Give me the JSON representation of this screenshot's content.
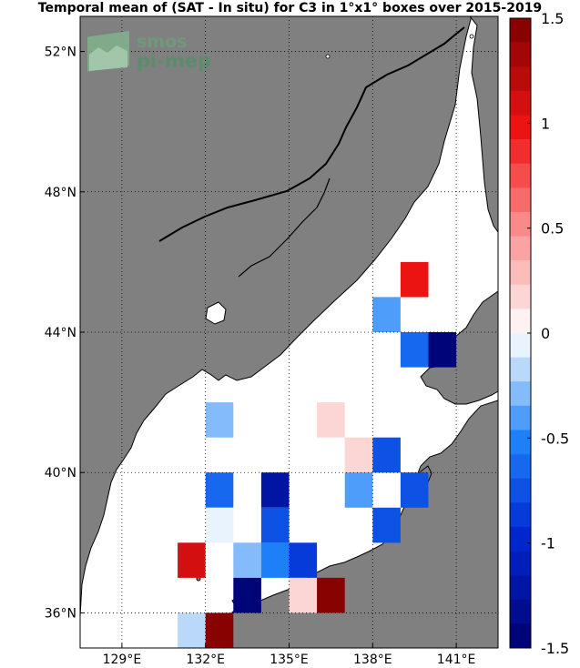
{
  "title": "Temporal mean of (SAT - In situ) for C3 in 1°x1° boxes over 2015-2019",
  "logo": {
    "line1": "smos",
    "line2": "pi-mep"
  },
  "map": {
    "lon_range": [
      127.5,
      142.5
    ],
    "lat_range": [
      35,
      53
    ],
    "land_color": "#808080",
    "sea_color": "#ffffff",
    "grid": true
  },
  "chart_data": {
    "type": "heatmap",
    "title": "Temporal mean of (SAT - In situ) for C3 in 1°x1° boxes over 2015-2019",
    "x_ticks": [
      "129°E",
      "132°E",
      "135°E",
      "138°E",
      "141°E"
    ],
    "y_ticks": [
      "36°N",
      "40°N",
      "44°N",
      "48°N",
      "52°N"
    ],
    "x_tick_values": [
      129,
      132,
      135,
      138,
      141
    ],
    "y_tick_values": [
      36,
      40,
      44,
      48,
      52
    ],
    "colorbar": {
      "min": -1.5,
      "max": 1.5,
      "tick_labels": [
        "1.5",
        "1",
        "0.5",
        "0",
        "-0.5",
        "-1",
        "-1.5"
      ],
      "tick_values": [
        1.5,
        1,
        0.5,
        0,
        -0.5,
        -1,
        -1.5
      ]
    },
    "cells": [
      {
        "lon": 139.5,
        "lat": 45.5,
        "value": 1.0
      },
      {
        "lon": 138.5,
        "lat": 44.5,
        "value": -0.45
      },
      {
        "lon": 139.5,
        "lat": 43.5,
        "value": -0.65
      },
      {
        "lon": 140.5,
        "lat": 43.5,
        "value": -1.45
      },
      {
        "lon": 132.5,
        "lat": 41.5,
        "value": -0.3
      },
      {
        "lon": 136.5,
        "lat": 41.5,
        "value": 0.15
      },
      {
        "lon": 137.5,
        "lat": 40.5,
        "value": 0.2
      },
      {
        "lon": 138.5,
        "lat": 40.5,
        "value": -0.75
      },
      {
        "lon": 132.5,
        "lat": 39.5,
        "value": -0.6
      },
      {
        "lon": 134.5,
        "lat": 39.5,
        "value": -1.25
      },
      {
        "lon": 137.5,
        "lat": 39.5,
        "value": -0.45
      },
      {
        "lon": 139.5,
        "lat": 39.5,
        "value": -0.7
      },
      {
        "lon": 132.5,
        "lat": 38.5,
        "value": -0.1
      },
      {
        "lon": 134.5,
        "lat": 38.5,
        "value": -0.8
      },
      {
        "lon": 138.5,
        "lat": 38.5,
        "value": -0.8
      },
      {
        "lon": 131.5,
        "lat": 37.5,
        "value": 1.05
      },
      {
        "lon": 133.5,
        "lat": 37.5,
        "value": -0.3
      },
      {
        "lon": 134.5,
        "lat": 37.5,
        "value": -0.55
      },
      {
        "lon": 135.5,
        "lat": 37.5,
        "value": -0.85
      },
      {
        "lon": 133.5,
        "lat": 36.5,
        "value": -1.45
      },
      {
        "lon": 135.5,
        "lat": 36.5,
        "value": 0.15
      },
      {
        "lon": 136.5,
        "lat": 36.5,
        "value": 1.45
      },
      {
        "lon": 131.5,
        "lat": 35.5,
        "value": -0.15
      },
      {
        "lon": 132.5,
        "lat": 35.5,
        "value": 1.45
      }
    ]
  }
}
